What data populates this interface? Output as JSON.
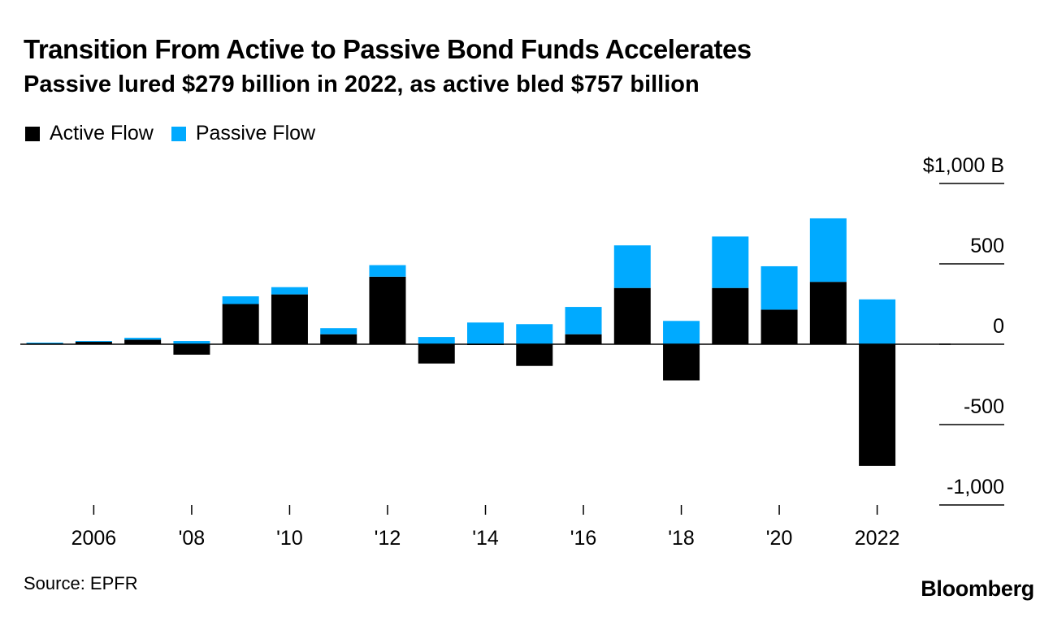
{
  "header": {
    "title": "Transition From Active to Passive Bond Funds Accelerates",
    "subtitle": "Passive lured $279 billion in 2022, as active bled $757 billion"
  },
  "footer": {
    "source": "Source: EPFR",
    "logo": "Bloomberg"
  },
  "colors": {
    "active": "#000000",
    "passive": "#00aaff",
    "gridline": "#000000"
  },
  "chart_data": {
    "type": "bar",
    "stacked": true,
    "title": "Transition From Active to Passive Bond Funds Accelerates",
    "subtitle": "Passive lured $279 billion in 2022, as active bled $757 billion",
    "categories": [
      "2005",
      "2006",
      "2007",
      "2008",
      "2009",
      "2010",
      "2011",
      "2012",
      "2013",
      "2014",
      "2015",
      "2016",
      "2017",
      "2018",
      "2019",
      "2020",
      "2021",
      "2022",
      "2023"
    ],
    "series": [
      {
        "name": "Active Flow",
        "color": "#000000",
        "values": [
          8,
          15,
          28,
          -65,
          250,
          310,
          62,
          420,
          -120,
          -5,
          -135,
          62,
          350,
          -225,
          350,
          215,
          388,
          -757,
          0
        ]
      },
      {
        "name": "Passive Flow",
        "color": "#00aaff",
        "values": [
          2,
          5,
          12,
          20,
          48,
          45,
          38,
          72,
          45,
          135,
          125,
          170,
          265,
          145,
          320,
          270,
          395,
          279,
          0
        ]
      }
    ],
    "ylim": [
      -1000,
      1000
    ],
    "yticks": [
      1000,
      500,
      0,
      -500,
      -1000
    ],
    "ytick_labels": [
      "$1,000 B",
      "500",
      "0",
      "-500",
      "-1,000"
    ],
    "xticks": [
      {
        "category": "2006",
        "label": "2006"
      },
      {
        "category": "2008",
        "label": "'08"
      },
      {
        "category": "2010",
        "label": "'10"
      },
      {
        "category": "2012",
        "label": "'12"
      },
      {
        "category": "2014",
        "label": "'14"
      },
      {
        "category": "2016",
        "label": "'16"
      },
      {
        "category": "2018",
        "label": "'18"
      },
      {
        "category": "2020",
        "label": "'20"
      },
      {
        "category": "2022",
        "label": "2022"
      }
    ],
    "xlabel": "",
    "ylabel": "",
    "legend": "top-left"
  }
}
